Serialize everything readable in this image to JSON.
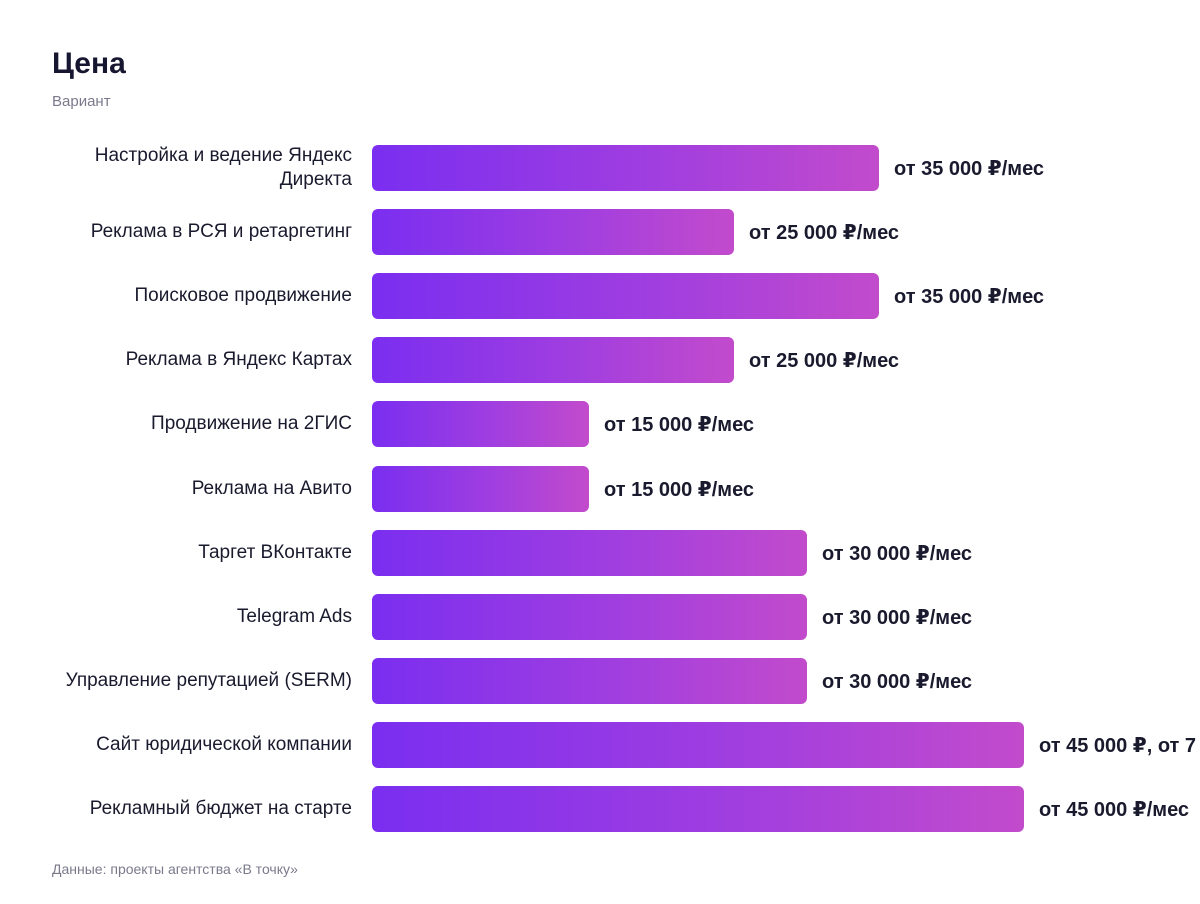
{
  "chart_data": {
    "type": "bar",
    "orientation": "horizontal",
    "title": "Цена",
    "subtitle": "Вариант",
    "categories": [
      "Настройка и ведение Яндекс Директа",
      "Реклама в РСЯ и ретаргетинг",
      "Поисковое продвижение",
      "Реклама в Яндекс Картах",
      "Продвижение на 2ГИС",
      "Реклама на Авито",
      "Таргет ВКонтакте",
      "Telegram Ads",
      "Управление репутацией (SERM)",
      "Сайт юридической компании",
      "Рекламный бюджет на старте"
    ],
    "values": [
      35000,
      25000,
      35000,
      25000,
      15000,
      15000,
      30000,
      30000,
      30000,
      45000,
      45000
    ],
    "value_labels": [
      "от 35 000 ₽/мес",
      "от 25 000 ₽/мес",
      "от 35 000 ₽/мес",
      "от 25 000 ₽/мес",
      "от 15 000 ₽/мес",
      "от 15 000 ₽/мес",
      "от 30 000 ₽/мес",
      "от 30 000 ₽/мес",
      "от 30 000 ₽/мес",
      "от 45 000 ₽, от 7",
      "от 45 000 ₽/мес"
    ],
    "xlim": [
      0,
      45000
    ],
    "grid": false,
    "footnote": "Данные: проекты агентства «В точку»",
    "colors": {
      "bar_start": "#7a2ef0",
      "bar_end": "#c24bcc",
      "text": "#1a1a2e",
      "muted": "#7a7a8c"
    }
  }
}
